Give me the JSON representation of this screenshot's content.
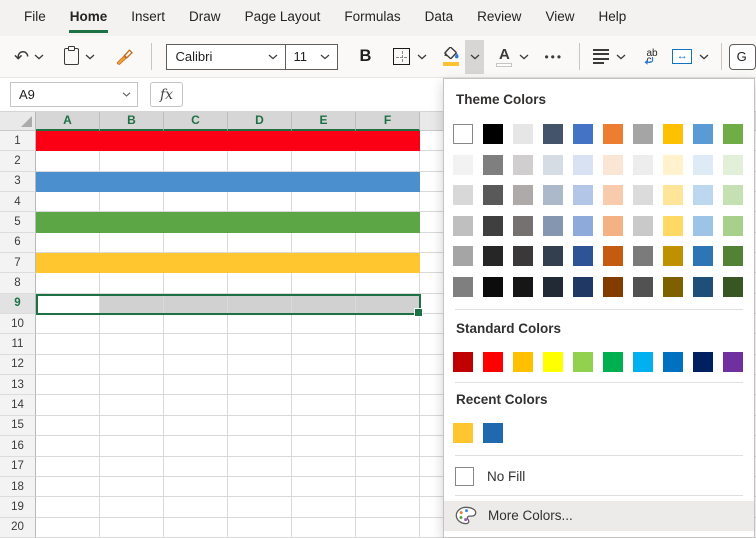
{
  "accent": {
    "green": "#1E7145",
    "pressed_gray": "#D8D6D4",
    "fill_bar_gold": "#FFC232",
    "font_bar_white": "#FFFFFF"
  },
  "menubar": {
    "items": [
      {
        "label": "File",
        "active": false
      },
      {
        "label": "Home",
        "active": true
      },
      {
        "label": "Insert",
        "active": false
      },
      {
        "label": "Draw",
        "active": false
      },
      {
        "label": "Page Layout",
        "active": false
      },
      {
        "label": "Formulas",
        "active": false
      },
      {
        "label": "Data",
        "active": false
      },
      {
        "label": "Review",
        "active": false
      },
      {
        "label": "View",
        "active": false
      },
      {
        "label": "Help",
        "active": false
      }
    ]
  },
  "toolbar": {
    "undo_glyph": "↶",
    "font_name": "Calibri",
    "font_size": "11",
    "bold_label": "B",
    "overflow_dots": "•••",
    "wrap_top": "ab",
    "wrap_bottom": "c",
    "merge_glyph": "↔",
    "number_format_partial": "G"
  },
  "formula_bar": {
    "name_box_value": "A9",
    "fx_label": "fx",
    "formula_value": ""
  },
  "sheet": {
    "columns": [
      "A",
      "B",
      "C",
      "D",
      "E",
      "F"
    ],
    "row_count": 20,
    "row_fills": {
      "1": "#FB0014",
      "3": "#4B8FCE",
      "5": "#5CA646",
      "7": "#FFC62F"
    },
    "selection": {
      "row": 9,
      "active_cell": "A9",
      "selected_bg": "#D1D1D1",
      "active_bg": "#FFFFFF"
    }
  },
  "fill_menu": {
    "theme": {
      "title": "Theme Colors",
      "rows": [
        [
          "#FFFFFF",
          "#000000",
          "#E7E6E6",
          "#44546A",
          "#4472C4",
          "#ED7D31",
          "#A5A5A5",
          "#FFC000",
          "#5B9BD5",
          "#70AD47"
        ],
        [
          "#F2F2F2",
          "#7F7F7F",
          "#D0CECE",
          "#D6DCE4",
          "#D9E2F3",
          "#FBE5D5",
          "#EDEDED",
          "#FFF2CC",
          "#DEEBF6",
          "#E2EFD9"
        ],
        [
          "#D8D8D8",
          "#595959",
          "#AEAAAA",
          "#ACB9CA",
          "#B4C6E7",
          "#F7CBAC",
          "#DBDBDB",
          "#FFE599",
          "#BDD7EE",
          "#C5E0B3"
        ],
        [
          "#BFBFBF",
          "#3F3F3F",
          "#757171",
          "#8496B0",
          "#8EAADB",
          "#F4B183",
          "#C9C9C9",
          "#FFD965",
          "#9DC3E6",
          "#A8D08D"
        ],
        [
          "#A5A5A5",
          "#262626",
          "#3A3838",
          "#333F4F",
          "#2F5496",
          "#C55A11",
          "#7B7B7B",
          "#BF9000",
          "#2E75B5",
          "#538135"
        ],
        [
          "#7F7F7F",
          "#0C0C0C",
          "#161616",
          "#222B35",
          "#1F3864",
          "#833C00",
          "#525252",
          "#7F6000",
          "#1F4E79",
          "#375623"
        ]
      ]
    },
    "standard": {
      "title": "Standard Colors",
      "colors": [
        "#C00000",
        "#FF0000",
        "#FFC000",
        "#FFFF00",
        "#92D050",
        "#00B050",
        "#00B0F0",
        "#0070C0",
        "#002060",
        "#7030A0"
      ]
    },
    "recent": {
      "title": "Recent Colors",
      "colors": [
        "#FFC62F",
        "#2169AE"
      ]
    },
    "no_fill_label": "No Fill",
    "more_colors_label": "More Colors..."
  }
}
